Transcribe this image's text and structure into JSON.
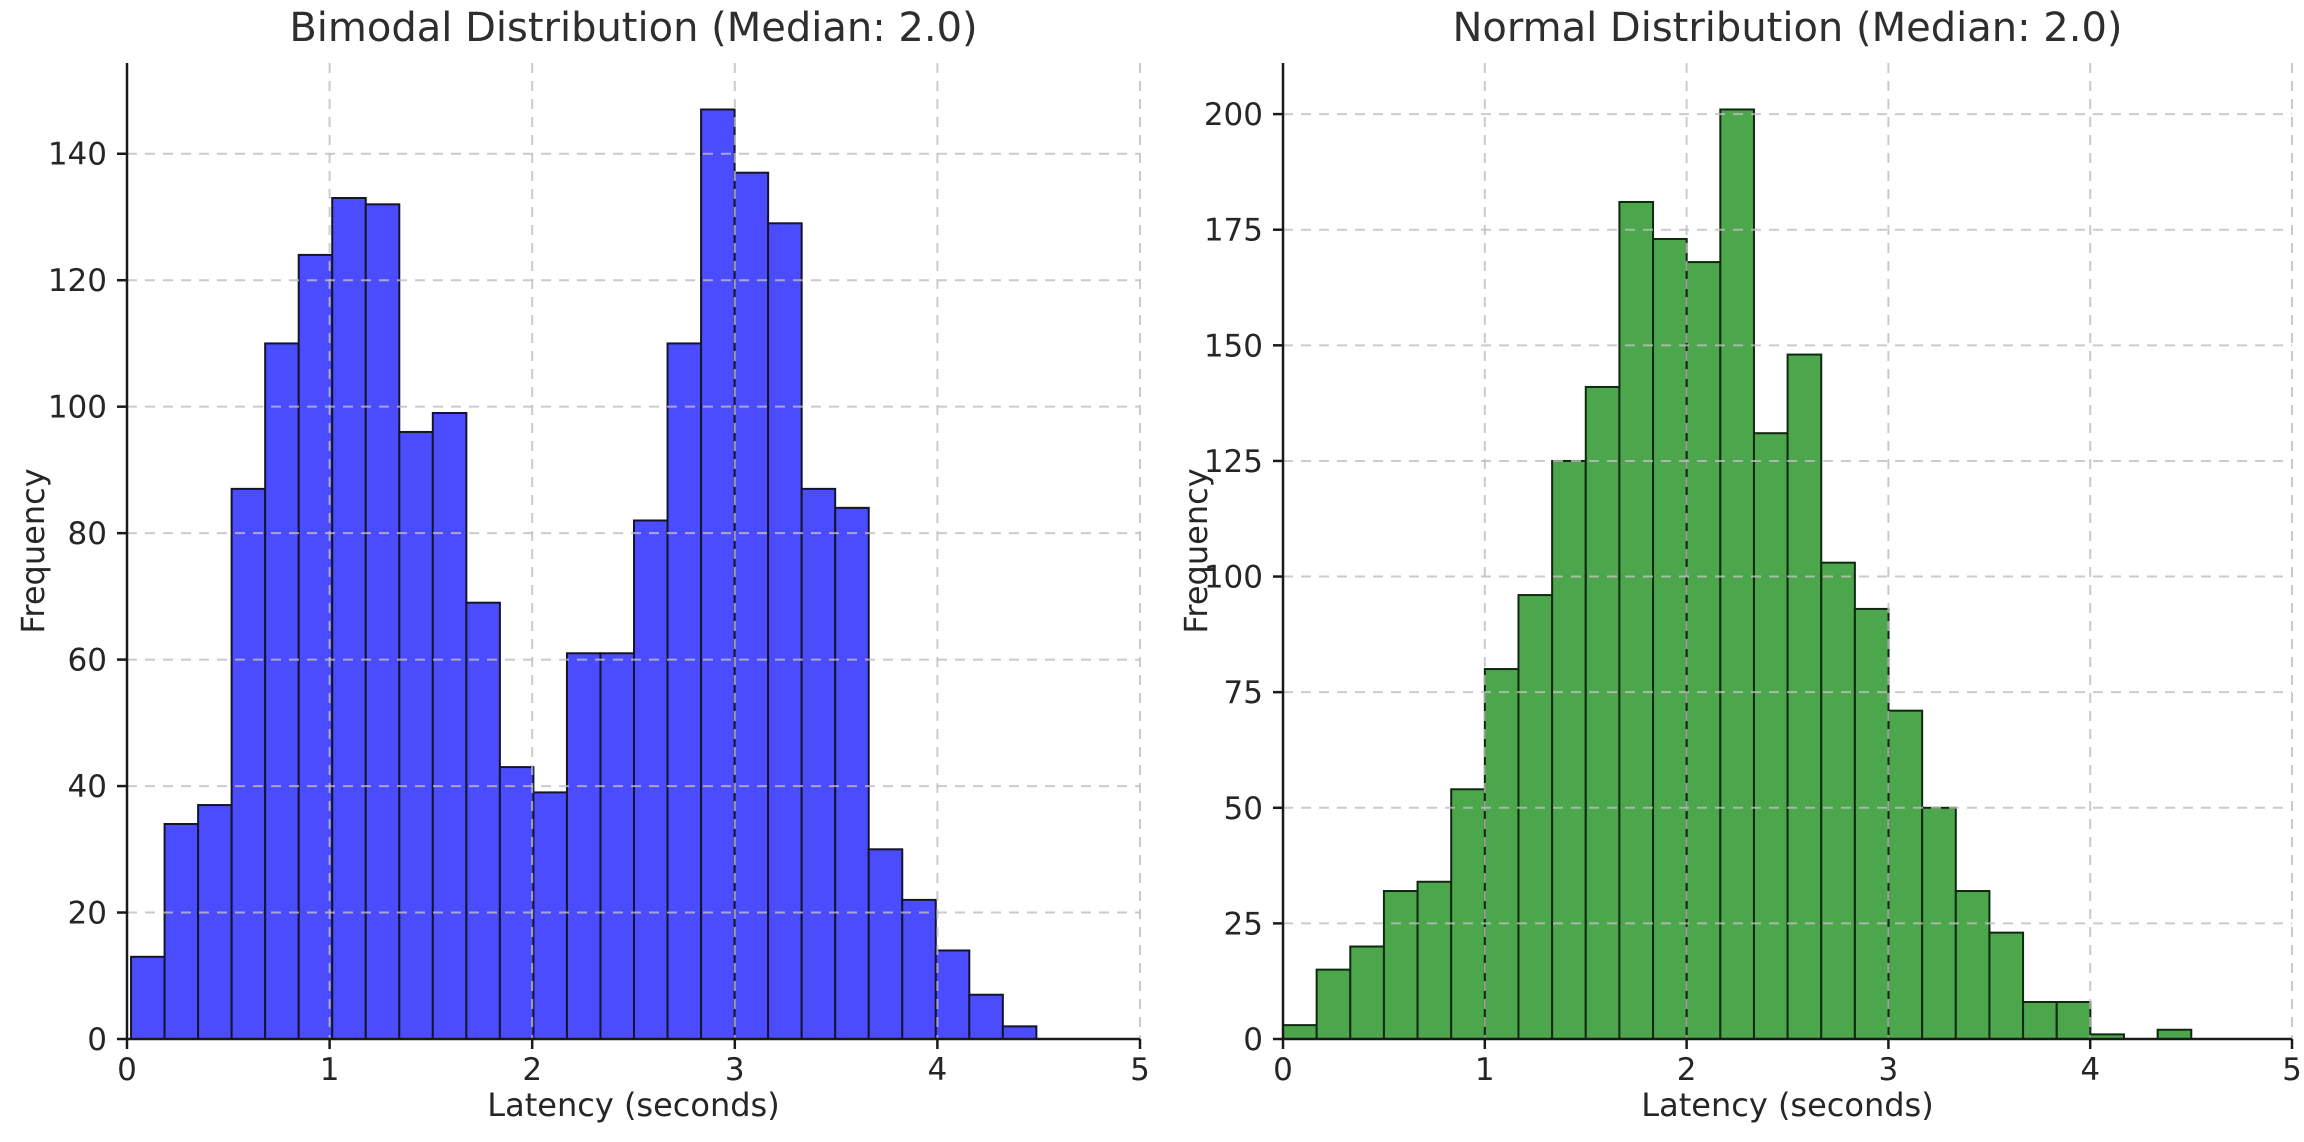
{
  "figure": {
    "background": "#ffffff",
    "text_color": "#262626",
    "grid_color": "#bebebe",
    "spine_color": "#1a1a1a"
  },
  "chart_data": [
    {
      "type": "bar",
      "subtype": "histogram",
      "title": "Bimodal Distribution (Median: 2.0)",
      "xlabel": "Latency (seconds)",
      "ylabel": "Frequency",
      "median_shown_in_title": "2.0",
      "bar_color": "#4C4CFF",
      "bar_edge_color": "#14142b",
      "bin_start": 0.02,
      "bin_width": 0.1655,
      "values": [
        13,
        34,
        37,
        87,
        110,
        124,
        133,
        132,
        96,
        99,
        69,
        43,
        39,
        61,
        61,
        82,
        110,
        147,
        137,
        129,
        87,
        84,
        30,
        22,
        14,
        7,
        2
      ],
      "xlim": [
        0,
        5
      ],
      "ylim": [
        0,
        154.35
      ],
      "xticks": [
        0,
        1,
        2,
        3,
        4,
        5
      ],
      "yticks": [
        0,
        20,
        40,
        60,
        80,
        100,
        120,
        140
      ],
      "grid": true,
      "legend": null
    },
    {
      "type": "bar",
      "subtype": "histogram",
      "title": "Normal Distribution (Median: 2.0)",
      "xlabel": "Latency (seconds)",
      "ylabel": "Frequency",
      "median_shown_in_title": "2.0",
      "bar_color": "#4CA64C",
      "bar_edge_color": "#102810",
      "bin_start": 0.0,
      "bin_width": 0.1667,
      "values": [
        3,
        15,
        20,
        32,
        34,
        54,
        80,
        96,
        125,
        141,
        181,
        173,
        168,
        201,
        131,
        148,
        103,
        93,
        71,
        50,
        32,
        23,
        8,
        8,
        1,
        0,
        2
      ],
      "xlim": [
        0,
        5
      ],
      "ylim": [
        0,
        211.05
      ],
      "xticks": [
        0,
        1,
        2,
        3,
        4,
        5
      ],
      "yticks": [
        0,
        25,
        50,
        75,
        100,
        125,
        150,
        175,
        200
      ],
      "grid": true,
      "legend": null
    }
  ]
}
